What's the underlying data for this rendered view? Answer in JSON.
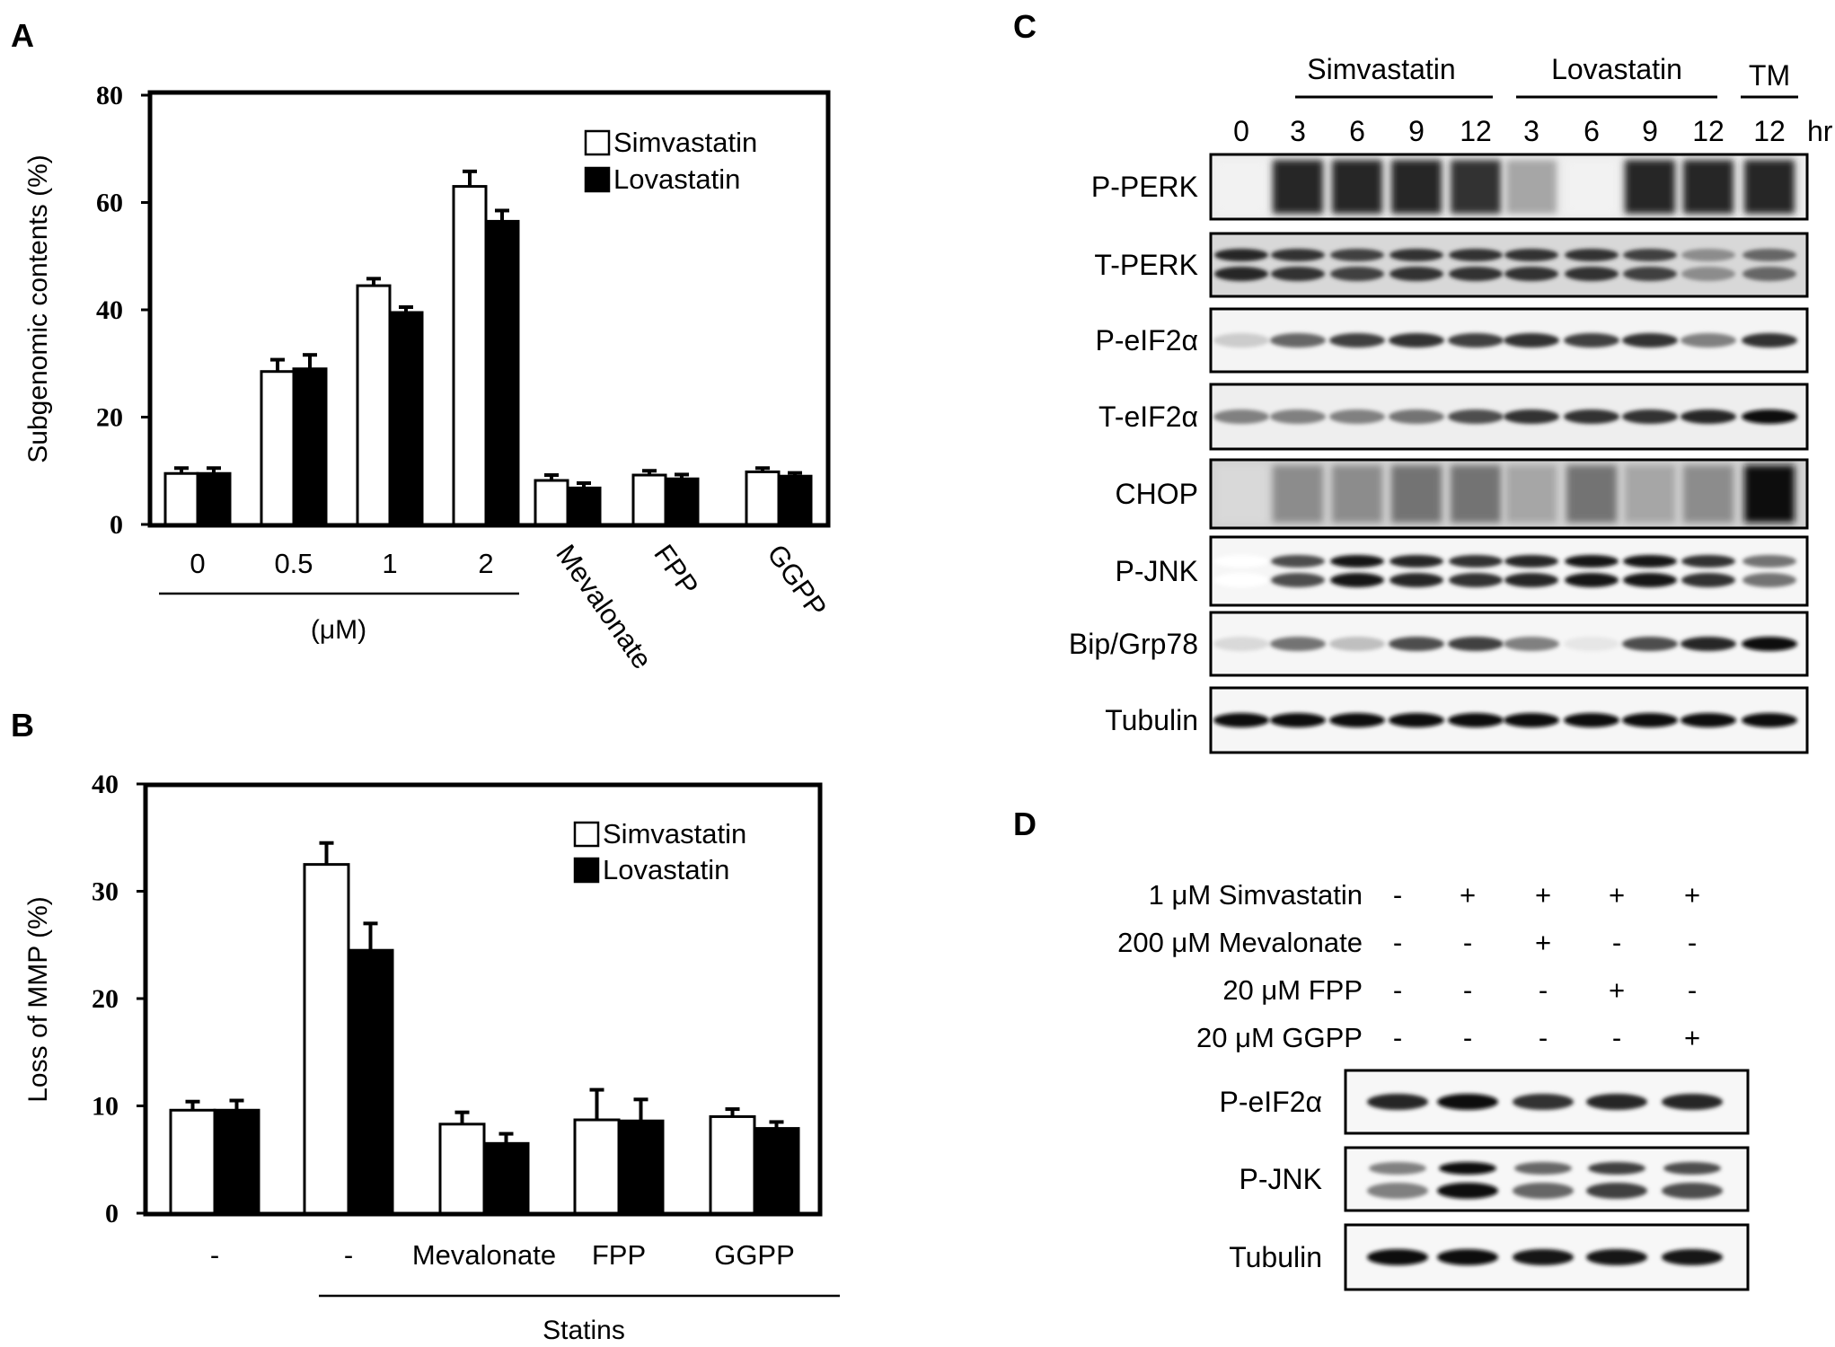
{
  "panel_letters": {
    "a": "A",
    "b": "B",
    "c": "C",
    "d": "D"
  },
  "colors": {
    "simvastatin": "#ffffff",
    "lovastatin": "#000000",
    "axis": "#000000"
  },
  "chart_data": [
    {
      "panel": "A",
      "type": "bar",
      "ylabel": "Subgenomic contents (%)",
      "ylim": [
        0,
        80
      ],
      "yticks": [
        "0",
        "20",
        "40",
        "60",
        "80"
      ],
      "categories": [
        "0",
        "0.5",
        "1",
        "2",
        "Mevalonate",
        "FPP",
        "GGPP"
      ],
      "group_label": "(μM)",
      "legend_position": "top-right",
      "series": [
        {
          "name": "Simvastatin",
          "values": [
            9.5,
            28.5,
            44.5,
            63,
            8.2,
            9.2,
            9.8
          ],
          "errors": [
            1.0,
            2.2,
            1.3,
            2.8,
            1.0,
            0.8,
            0.7
          ]
        },
        {
          "name": "Lovastatin",
          "values": [
            9.5,
            29,
            39.5,
            56.5,
            6.8,
            8.5,
            9.0
          ],
          "errors": [
            1.0,
            2.6,
            1.0,
            2.0,
            0.9,
            0.8,
            0.6
          ]
        }
      ]
    },
    {
      "panel": "B",
      "type": "bar",
      "ylabel": "Loss of MMP (%)",
      "ylim": [
        0,
        40
      ],
      "yticks": [
        "0",
        "10",
        "20",
        "30",
        "40"
      ],
      "categories": [
        "-",
        "-",
        "Mevalonate",
        "FPP",
        "GGPP"
      ],
      "group_label": "Statins",
      "legend_position": "top-right",
      "series": [
        {
          "name": "Simvastatin",
          "values": [
            9.6,
            32.5,
            8.3,
            8.7,
            9.0
          ],
          "errors": [
            0.8,
            2.0,
            1.1,
            2.8,
            0.7
          ]
        },
        {
          "name": "Lovastatin",
          "values": [
            9.6,
            24.5,
            6.5,
            8.6,
            7.9
          ],
          "errors": [
            0.9,
            2.5,
            0.9,
            2.0,
            0.6
          ]
        }
      ]
    }
  ],
  "blot_c": {
    "group_headers": [
      "Simvastatin",
      "Lovastatin",
      "TM"
    ],
    "time_labels": [
      "0",
      "3",
      "6",
      "9",
      "12",
      "3",
      "6",
      "9",
      "12",
      "12"
    ],
    "time_unit": "hr",
    "rows": [
      "P-PERK",
      "T-PERK",
      "P-eIF2α",
      "T-eIF2α",
      "CHOP",
      "P-JNK",
      "Bip/Grp78",
      "Tubulin"
    ]
  },
  "blot_d": {
    "conditions": [
      {
        "label": "1 μM Simvastatin",
        "signs": [
          "-",
          "+",
          "+",
          "+",
          "+"
        ]
      },
      {
        "label": "200 μM Mevalonate",
        "signs": [
          "-",
          "-",
          "+",
          "-",
          "-"
        ]
      },
      {
        "label": "20 μM FPP",
        "signs": [
          "-",
          "-",
          "-",
          "+",
          "-"
        ]
      },
      {
        "label": "20 μM GGPP",
        "signs": [
          "-",
          "-",
          "-",
          "-",
          "+"
        ]
      }
    ],
    "rows": [
      "P-eIF2α",
      "P-JNK",
      "Tubulin"
    ]
  }
}
